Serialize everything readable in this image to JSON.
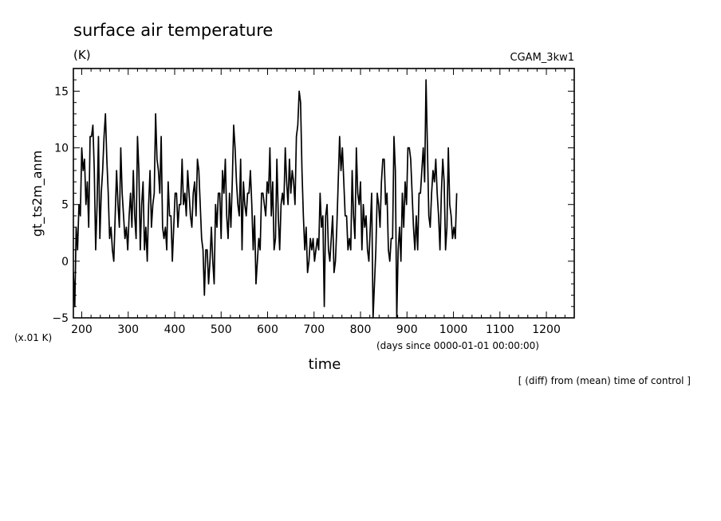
{
  "chart_data": {
    "type": "line",
    "title": "surface air temperature",
    "units": "(K)",
    "run_label": "CGAM_3kw1",
    "xlabel": "time",
    "x_units": "(days since 0000-01-01 00:00:00)",
    "ylabel": "gt_ts2m_anm",
    "y_scale_note": "(x.01 K)",
    "footnote": "[ (diff) from (mean) time of control ]",
    "xlim": [
      182,
      1260
    ],
    "ylim": [
      -5,
      17
    ],
    "x_ticks": [
      200,
      300,
      400,
      500,
      600,
      700,
      800,
      900,
      1000,
      1100,
      1200
    ],
    "y_ticks": [
      -5,
      0,
      5,
      10,
      15
    ],
    "series": [
      {
        "name": "gt_ts2m_anm",
        "x_start": 182,
        "x_step": 3,
        "values": [
          -1,
          -4,
          3,
          1,
          5,
          4,
          10,
          8,
          9,
          5,
          7,
          3,
          11,
          11,
          12,
          8,
          1,
          5,
          11,
          2,
          6,
          8,
          11,
          13,
          9,
          6,
          2,
          3,
          1,
          0,
          4,
          8,
          5,
          3,
          10,
          6,
          4,
          2,
          3,
          1,
          4,
          6,
          3,
          8,
          4,
          2,
          11,
          8,
          1,
          5,
          7,
          1,
          3,
          0,
          5,
          8,
          3,
          5,
          6,
          13,
          9,
          8,
          6,
          11,
          3,
          2,
          3,
          1,
          7,
          4,
          4,
          0,
          3,
          6,
          6,
          3,
          5,
          5,
          9,
          5,
          6,
          4,
          8,
          6,
          4,
          3,
          6,
          7,
          4,
          9,
          8,
          5,
          2,
          1,
          -3,
          1,
          1,
          -2,
          0,
          3,
          0,
          -2,
          5,
          3,
          6,
          6,
          2,
          8,
          6,
          9,
          4,
          2,
          6,
          3,
          7,
          12,
          10,
          7,
          5,
          4,
          9,
          1,
          7,
          5,
          4,
          6,
          6,
          8,
          5,
          1,
          4,
          -2,
          0,
          2,
          1,
          6,
          6,
          5,
          4,
          7,
          6,
          10,
          4,
          7,
          1,
          2,
          9,
          4,
          1,
          5,
          6,
          5,
          10,
          7,
          5,
          9,
          6,
          8,
          7,
          5,
          11,
          12,
          15,
          14,
          8,
          4,
          1,
          3,
          -1,
          0,
          2,
          1,
          2,
          0,
          1,
          2,
          1,
          6,
          3,
          4,
          -4,
          4,
          5,
          1,
          0,
          2,
          4,
          -1,
          0,
          3,
          7,
          11,
          8,
          10,
          7,
          4,
          4,
          1,
          2,
          1,
          8,
          4,
          2,
          10,
          6,
          5,
          7,
          1,
          5,
          3,
          4,
          1,
          0,
          3,
          6,
          -5,
          -2,
          1,
          6,
          5,
          3,
          7,
          9,
          9,
          5,
          6,
          1,
          0,
          2,
          2,
          11,
          8,
          -5,
          1,
          3,
          0,
          6,
          3,
          7,
          5,
          10,
          10,
          9,
          6,
          3,
          1,
          4,
          1,
          6,
          6,
          8,
          10,
          7,
          16,
          10,
          4,
          3,
          6,
          8,
          7,
          9,
          6,
          4,
          1,
          6,
          9,
          7,
          1,
          3,
          10,
          5,
          4,
          2,
          3,
          2,
          6
        ]
      }
    ]
  }
}
